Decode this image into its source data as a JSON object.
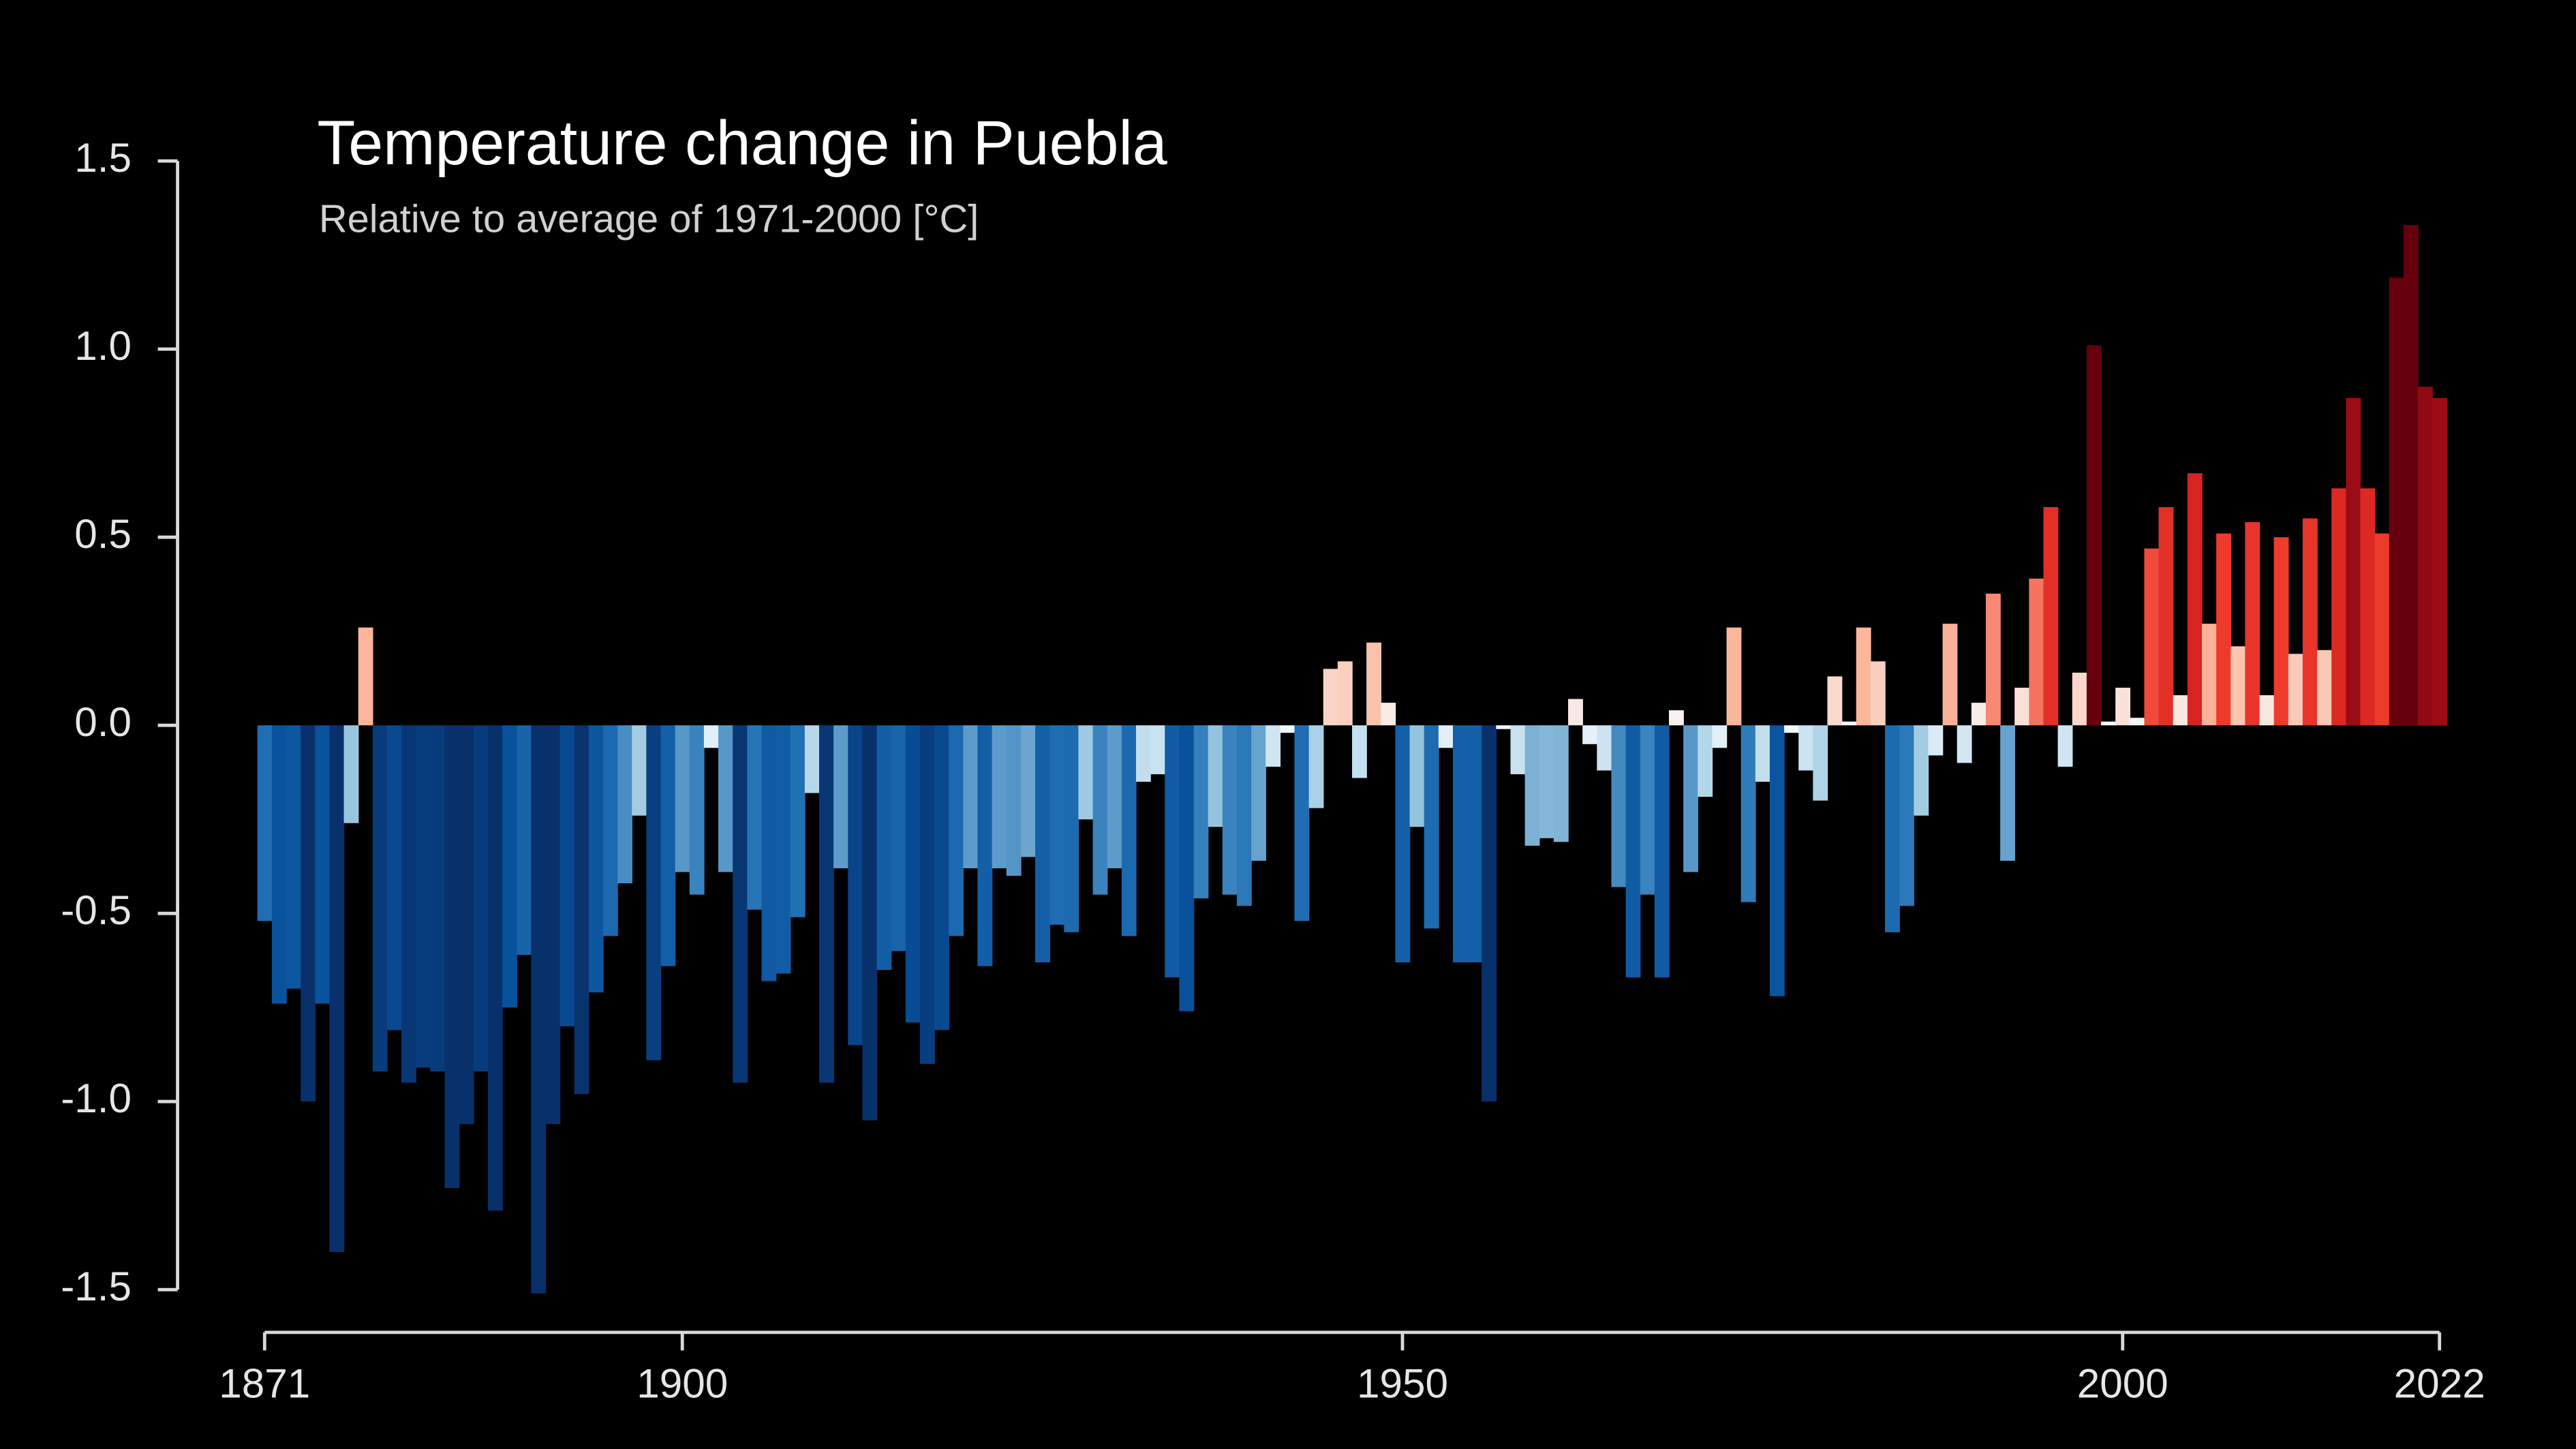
{
  "chart_data": {
    "type": "bar",
    "title": "Temperature change in Puebla",
    "subtitle": "Relative to average of 1971-2000  [°C]",
    "x": [
      1871,
      1872,
      1873,
      1874,
      1875,
      1876,
      1877,
      1878,
      1879,
      1880,
      1881,
      1882,
      1883,
      1884,
      1885,
      1886,
      1887,
      1888,
      1889,
      1890,
      1891,
      1892,
      1893,
      1894,
      1895,
      1896,
      1897,
      1898,
      1899,
      1900,
      1901,
      1902,
      1903,
      1904,
      1905,
      1906,
      1907,
      1908,
      1909,
      1910,
      1911,
      1912,
      1913,
      1914,
      1915,
      1916,
      1917,
      1918,
      1919,
      1920,
      1921,
      1922,
      1923,
      1924,
      1925,
      1926,
      1927,
      1928,
      1929,
      1930,
      1931,
      1932,
      1933,
      1934,
      1935,
      1936,
      1937,
      1938,
      1939,
      1940,
      1941,
      1942,
      1943,
      1944,
      1945,
      1946,
      1947,
      1948,
      1949,
      1950,
      1951,
      1952,
      1953,
      1954,
      1955,
      1956,
      1957,
      1958,
      1959,
      1960,
      1961,
      1962,
      1963,
      1964,
      1965,
      1966,
      1967,
      1968,
      1969,
      1970,
      1971,
      1972,
      1973,
      1974,
      1975,
      1976,
      1977,
      1978,
      1979,
      1980,
      1981,
      1982,
      1983,
      1984,
      1985,
      1986,
      1987,
      1988,
      1989,
      1990,
      1991,
      1992,
      1993,
      1994,
      1995,
      1996,
      1997,
      1998,
      1999,
      2000,
      2001,
      2002,
      2003,
      2004,
      2005,
      2006,
      2007,
      2008,
      2009,
      2010,
      2011,
      2012,
      2013,
      2014,
      2015,
      2016,
      2017,
      2018,
      2019,
      2020,
      2021,
      2022
    ],
    "values": [
      -0.52,
      -0.74,
      -0.7,
      -1.0,
      -0.74,
      -1.4,
      -0.26,
      0.26,
      -0.92,
      -0.81,
      -0.95,
      -0.91,
      -0.92,
      -1.23,
      -1.06,
      -0.92,
      -1.29,
      -0.75,
      -0.61,
      -1.51,
      -1.06,
      -0.8,
      -0.98,
      -0.71,
      -0.56,
      -0.42,
      -0.24,
      -0.89,
      -0.64,
      -0.39,
      -0.45,
      -0.06,
      -0.39,
      -0.95,
      -0.49,
      -0.68,
      -0.66,
      -0.51,
      -0.18,
      -0.95,
      -0.38,
      -0.85,
      -1.05,
      -0.65,
      -0.6,
      -0.79,
      -0.9,
      -0.81,
      -0.56,
      -0.38,
      -0.64,
      -0.38,
      -0.4,
      -0.35,
      -0.63,
      -0.53,
      -0.55,
      -0.25,
      -0.45,
      -0.38,
      -0.56,
      -0.15,
      -0.13,
      -0.67,
      -0.76,
      -0.46,
      -0.27,
      -0.45,
      -0.48,
      -0.36,
      -0.11,
      -0.02,
      -0.52,
      -0.22,
      0.15,
      0.17,
      -0.14,
      0.22,
      0.06,
      -0.63,
      -0.27,
      -0.54,
      -0.06,
      -0.63,
      -0.63,
      -1.0,
      -0.01,
      -0.13,
      -0.32,
      -0.3,
      -0.31,
      0.07,
      -0.05,
      -0.12,
      -0.43,
      -0.67,
      -0.45,
      -0.67,
      0.04,
      -0.39,
      -0.19,
      -0.06,
      0.26,
      -0.47,
      -0.15,
      -0.72,
      -0.02,
      -0.12,
      -0.2,
      0.13,
      0.01,
      0.26,
      0.17,
      -0.55,
      -0.48,
      -0.24,
      -0.08,
      0.27,
      -0.1,
      0.06,
      0.35,
      -0.36,
      0.1,
      0.39,
      0.58,
      -0.11,
      0.14,
      1.01,
      0.01,
      0.1,
      0.02,
      0.47,
      0.58,
      0.08,
      0.67,
      0.27,
      0.51,
      0.21,
      0.54,
      0.08,
      0.5,
      0.19,
      0.55,
      0.2,
      0.63,
      0.87,
      0.63,
      0.51,
      1.19,
      1.33,
      0.9,
      0.87
    ],
    "color_stops": [
      "#08306b",
      "#08306b",
      "#08306b",
      "#08519c",
      "#2171b5",
      "#9ecae1",
      "#f7fbff",
      "#fcbba1",
      "#ef3b2c",
      "#cb181d",
      "#67000d",
      "#67000d",
      "#67000d"
    ],
    "xlim": [
      1871,
      2022
    ],
    "xticks": [
      1871,
      1900,
      1950,
      2000,
      2022
    ],
    "ylim": [
      -1.5,
      1.5
    ],
    "yticks": [
      {
        "value": -1.5,
        "label": "-1.5"
      },
      {
        "value": -1.0,
        "label": "-1.0"
      },
      {
        "value": -0.5,
        "label": "-0.5"
      },
      {
        "value": 0,
        "label": "0.0"
      },
      {
        "value": 0.5,
        "label": "0.5"
      },
      {
        "value": 1.0,
        "label": "1.0"
      },
      {
        "value": 1.5,
        "label": "1.5"
      }
    ],
    "grid": false
  }
}
